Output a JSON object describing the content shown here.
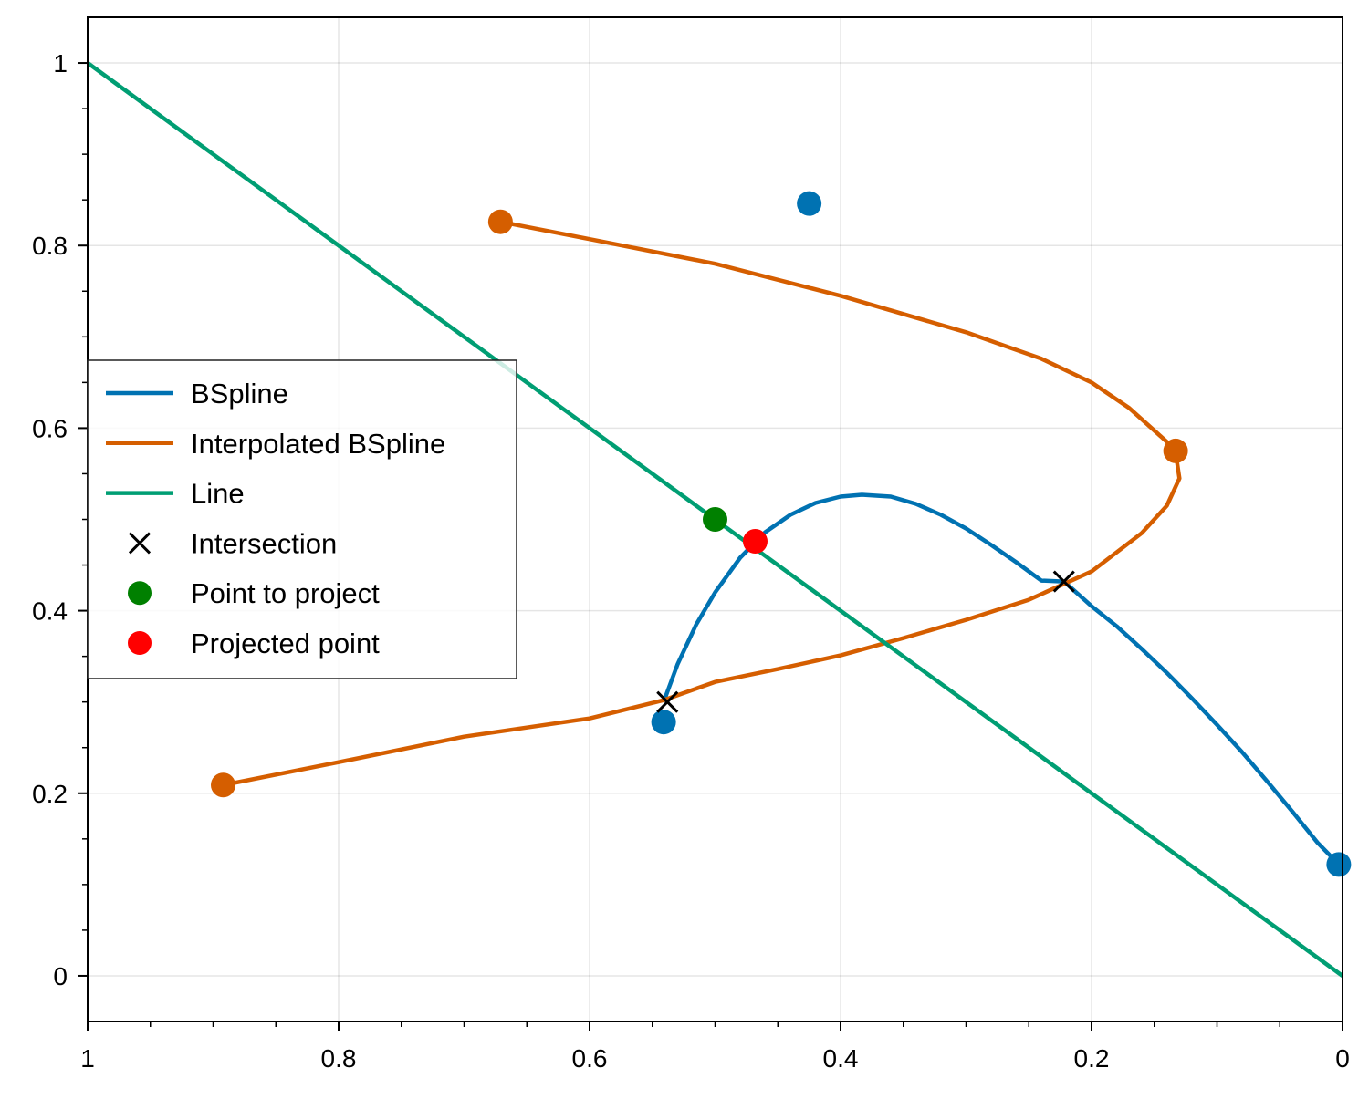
{
  "chart_data": {
    "type": "line",
    "title": "",
    "xlabel": "",
    "ylabel": "",
    "xlim": [
      1.0,
      0.0
    ],
    "ylim": [
      -0.05,
      1.05
    ],
    "x_inverted": true,
    "grid": true,
    "legend_position": "center-left",
    "x_ticks": [
      1,
      0.8,
      0.6,
      0.4,
      0.2,
      0
    ],
    "x_tick_labels": [
      "1",
      "0.8",
      "0.6",
      "0.4",
      "0.2",
      "0"
    ],
    "y_ticks": [
      0,
      0.2,
      0.4,
      0.6,
      0.8,
      1
    ],
    "y_tick_labels": [
      "0",
      "0.2",
      "0.4",
      "0.6",
      "0.8",
      "1"
    ],
    "series": [
      {
        "name": "BSpline",
        "kind": "line",
        "color": "#0072b2",
        "x": [
          0.541,
          0.53,
          0.515,
          0.5,
          0.48,
          0.46,
          0.44,
          0.42,
          0.4,
          0.383,
          0.36,
          0.34,
          0.32,
          0.3,
          0.28,
          0.26,
          0.24,
          0.222,
          0.2,
          0.18,
          0.16,
          0.14,
          0.12,
          0.1,
          0.08,
          0.06,
          0.04,
          0.02,
          0.003
        ],
        "y": [
          0.3,
          0.341,
          0.385,
          0.42,
          0.458,
          0.486,
          0.505,
          0.518,
          0.525,
          0.527,
          0.525,
          0.517,
          0.505,
          0.49,
          0.472,
          0.453,
          0.433,
          0.432,
          0.405,
          0.383,
          0.358,
          0.332,
          0.304,
          0.275,
          0.245,
          0.213,
          0.18,
          0.146,
          0.122
        ]
      },
      {
        "name": "Interpolated BSpline",
        "kind": "line",
        "color": "#d55e00",
        "x": [
          0.671,
          0.6,
          0.5,
          0.4,
          0.3,
          0.24,
          0.2,
          0.17,
          0.14,
          0.133,
          0.13,
          0.14,
          0.16,
          0.2,
          0.25,
          0.3,
          0.35,
          0.4,
          0.45,
          0.5,
          0.541,
          0.6,
          0.7,
          0.8,
          0.892
        ],
        "y": [
          0.826,
          0.807,
          0.78,
          0.745,
          0.705,
          0.676,
          0.65,
          0.622,
          0.585,
          0.573,
          0.545,
          0.515,
          0.485,
          0.443,
          0.412,
          0.39,
          0.37,
          0.351,
          0.336,
          0.322,
          0.302,
          0.282,
          0.262,
          0.234,
          0.209
        ]
      },
      {
        "name": "Line",
        "kind": "line",
        "color": "#009e73",
        "x": [
          1.0,
          0.0
        ],
        "y": [
          1.0,
          0.0
        ]
      },
      {
        "name": "",
        "kind": "scatter",
        "color": "#0072b2",
        "x": [
          0.541,
          0.425,
          0.003
        ],
        "y": [
          0.278,
          0.846,
          0.122
        ]
      },
      {
        "name": "",
        "kind": "scatter",
        "color": "#d55e00",
        "x": [
          0.671,
          0.133,
          0.892
        ],
        "y": [
          0.826,
          0.575,
          0.209
        ]
      },
      {
        "name": "Intersection",
        "kind": "marker-x",
        "color": "#000000",
        "x": [
          0.538,
          0.222
        ],
        "y": [
          0.3,
          0.432
        ]
      },
      {
        "name": "Point to project",
        "kind": "scatter",
        "color": "#008000",
        "x": [
          0.5
        ],
        "y": [
          0.5
        ]
      },
      {
        "name": "Projected point",
        "kind": "scatter",
        "color": "#ff0000",
        "x": [
          0.468
        ],
        "y": [
          0.476
        ]
      }
    ],
    "legend": [
      {
        "label": "BSpline",
        "symbol": "line",
        "color": "#0072b2"
      },
      {
        "label": "Interpolated BSpline",
        "symbol": "line",
        "color": "#d55e00"
      },
      {
        "label": "Line",
        "symbol": "line",
        "color": "#009e73"
      },
      {
        "label": "Intersection",
        "symbol": "x",
        "color": "#000000"
      },
      {
        "label": "Point to project",
        "symbol": "dot",
        "color": "#008000"
      },
      {
        "label": "Projected point",
        "symbol": "dot",
        "color": "#ff0000"
      }
    ]
  }
}
